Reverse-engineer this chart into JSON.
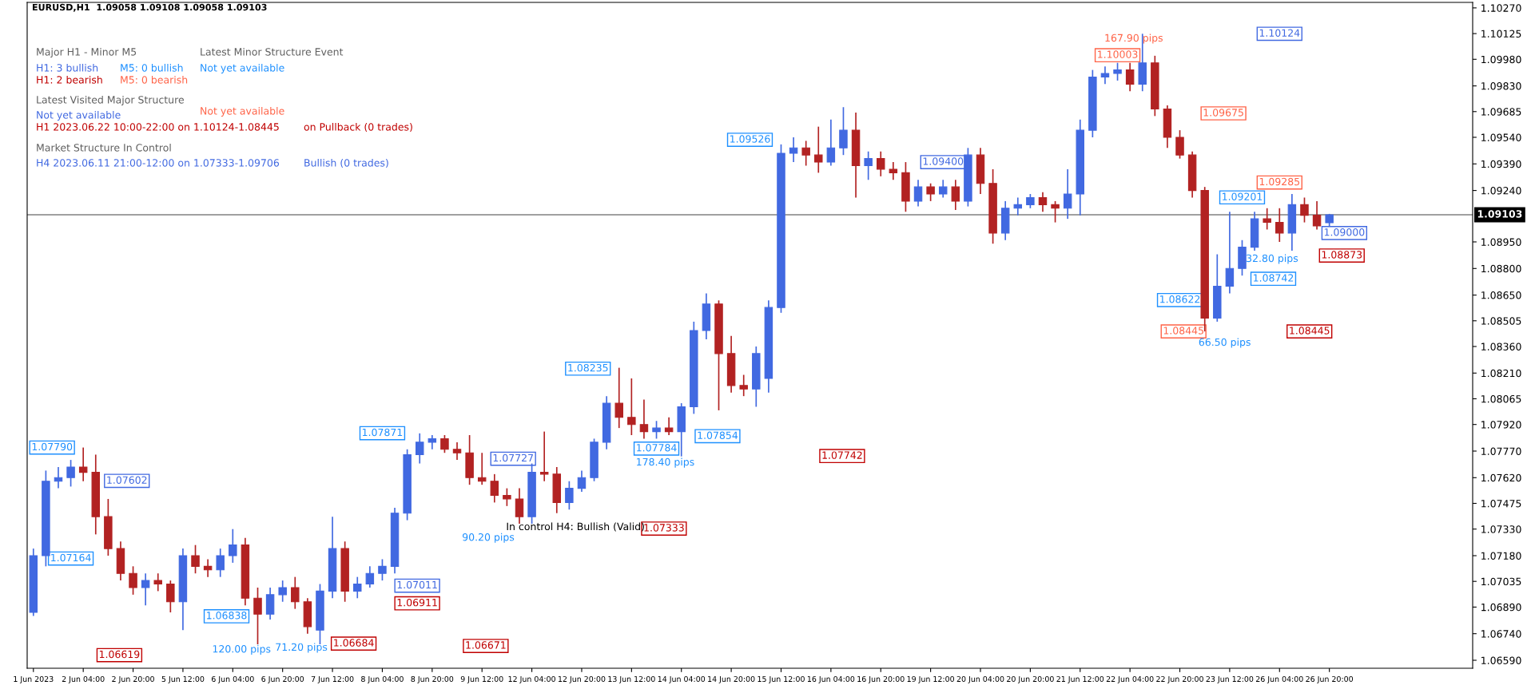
{
  "chart_data": {
    "type": "candlestick",
    "title": "EURUSD,H1  1.09058 1.09108 1.09058 1.09103",
    "categories": [
      "1 Jun 2023",
      null,
      null,
      null,
      "2 Jun 04:00",
      null,
      null,
      null,
      "2 Jun 20:00",
      null,
      null,
      null,
      "5 Jun 12:00",
      null,
      null,
      null,
      "6 Jun 04:00",
      null,
      null,
      null,
      "6 Jun 20:00",
      null,
      null,
      null,
      "7 Jun 12:00",
      null,
      null,
      null,
      "8 Jun 04:00",
      null,
      null,
      null,
      "8 Jun 20:00",
      null,
      null,
      null,
      "9 Jun 12:00",
      null,
      null,
      null,
      "12 Jun 04:00",
      null,
      null,
      null,
      "12 Jun 20:00",
      null,
      null,
      null,
      "13 Jun 12:00",
      null,
      null,
      null,
      "14 Jun 04:00",
      null,
      null,
      null,
      "14 Jun 20:00",
      null,
      null,
      null,
      "15 Jun 12:00",
      null,
      null,
      null,
      "16 Jun 04:00",
      null,
      null,
      null,
      "16 Jun 20:00",
      null,
      null,
      null,
      "19 Jun 12:00",
      null,
      null,
      null,
      "20 Jun 04:00",
      null,
      null,
      null,
      "20 Jun 20:00",
      null,
      null,
      null,
      "21 Jun 12:00",
      null,
      null,
      null,
      "22 Jun 04:00",
      null,
      null,
      null,
      "22 Jun 20:00",
      null,
      null,
      null,
      "23 Jun 12:00",
      null,
      null,
      null,
      "26 Jun 04:00",
      null,
      null,
      null,
      "26 Jun 20:00",
      null,
      null,
      null,
      null,
      null,
      null,
      null,
      null,
      null,
      null,
      null
    ],
    "ohlc": [
      [
        1.0686,
        1.0722,
        1.0684,
        1.0718
      ],
      [
        1.0718,
        1.0766,
        1.0712,
        1.076
      ],
      [
        1.076,
        1.0768,
        1.0756,
        1.0762
      ],
      [
        1.0762,
        1.0772,
        1.0757,
        1.0768
      ],
      [
        1.0768,
        1.0779,
        1.076,
        1.0765
      ],
      [
        1.0765,
        1.0775,
        1.073,
        1.074
      ],
      [
        1.074,
        1.075,
        1.0718,
        1.0722
      ],
      [
        1.0722,
        1.0726,
        1.0704,
        1.0708
      ],
      [
        1.0708,
        1.0712,
        1.0696,
        1.07
      ],
      [
        1.07,
        1.0708,
        1.069,
        1.0704
      ],
      [
        1.0704,
        1.0708,
        1.0698,
        1.0702
      ],
      [
        1.0702,
        1.0704,
        1.0686,
        1.0692
      ],
      [
        1.0692,
        1.0722,
        1.0676,
        1.0718
      ],
      [
        1.0718,
        1.0724,
        1.0708,
        1.0712
      ],
      [
        1.0712,
        1.0716,
        1.0706,
        1.071
      ],
      [
        1.071,
        1.0722,
        1.0706,
        1.0718
      ],
      [
        1.0718,
        1.0733,
        1.0714,
        1.0724
      ],
      [
        1.0724,
        1.0728,
        1.069,
        1.0694
      ],
      [
        1.0694,
        1.07,
        1.0668,
        1.0685
      ],
      [
        1.0685,
        1.07,
        1.0682,
        1.0696
      ],
      [
        1.0696,
        1.0704,
        1.0692,
        1.07
      ],
      [
        1.07,
        1.0706,
        1.0688,
        1.0692
      ],
      [
        1.0692,
        1.0694,
        1.0674,
        1.0678
      ],
      [
        1.0676,
        1.0702,
        1.0668,
        1.0698
      ],
      [
        1.0698,
        1.074,
        1.0694,
        1.0722
      ],
      [
        1.0722,
        1.0726,
        1.0692,
        1.0698
      ],
      [
        1.0698,
        1.0706,
        1.0694,
        1.0702
      ],
      [
        1.0702,
        1.0712,
        1.07,
        1.0708
      ],
      [
        1.0708,
        1.0716,
        1.0704,
        1.0712
      ],
      [
        1.0712,
        1.0745,
        1.0708,
        1.0742
      ],
      [
        1.0742,
        1.0778,
        1.0738,
        1.0775
      ],
      [
        1.0775,
        1.0787,
        1.077,
        1.0782
      ],
      [
        1.0782,
        1.0786,
        1.0778,
        1.0784
      ],
      [
        1.0784,
        1.0786,
        1.0776,
        1.0778
      ],
      [
        1.0778,
        1.0782,
        1.0772,
        1.0776
      ],
      [
        1.0776,
        1.0786,
        1.0758,
        1.0762
      ],
      [
        1.0762,
        1.0776,
        1.0758,
        1.076
      ],
      [
        1.076,
        1.0764,
        1.0748,
        1.0752
      ],
      [
        1.0752,
        1.0756,
        1.0746,
        1.075
      ],
      [
        1.075,
        1.0756,
        1.0736,
        1.074
      ],
      [
        1.074,
        1.077,
        1.0736,
        1.0765
      ],
      [
        1.0765,
        1.0788,
        1.076,
        1.0764
      ],
      [
        1.0764,
        1.0768,
        1.0742,
        1.0748
      ],
      [
        1.0748,
        1.076,
        1.0744,
        1.0756
      ],
      [
        1.0756,
        1.0766,
        1.0754,
        1.0762
      ],
      [
        1.0762,
        1.0784,
        1.076,
        1.0782
      ],
      [
        1.0782,
        1.0808,
        1.0778,
        1.0804
      ],
      [
        1.0804,
        1.0824,
        1.079,
        1.0796
      ],
      [
        1.0796,
        1.0818,
        1.0786,
        1.0792
      ],
      [
        1.0792,
        1.0806,
        1.0784,
        1.0788
      ],
      [
        1.0788,
        1.0794,
        1.0784,
        1.079
      ],
      [
        1.079,
        1.0796,
        1.0786,
        1.0788
      ],
      [
        1.0788,
        1.0804,
        1.0774,
        1.0802
      ],
      [
        1.0802,
        1.085,
        1.0798,
        1.0845
      ],
      [
        1.0845,
        1.0866,
        1.084,
        1.086
      ],
      [
        1.086,
        1.0862,
        1.08,
        1.0832
      ],
      [
        1.0832,
        1.0842,
        1.081,
        1.0814
      ],
      [
        1.0814,
        1.082,
        1.0808,
        1.0812
      ],
      [
        1.0812,
        1.0836,
        1.0802,
        1.0832
      ],
      [
        1.0818,
        1.0862,
        1.081,
        1.0858
      ],
      [
        1.0858,
        1.095,
        1.0855,
        1.0945
      ],
      [
        1.0945,
        1.0954,
        1.094,
        1.0948
      ],
      [
        1.0948,
        1.0952,
        1.0938,
        1.0944
      ],
      [
        1.0944,
        1.096,
        1.0934,
        1.094
      ],
      [
        1.094,
        1.0964,
        1.0938,
        1.0948
      ],
      [
        1.0948,
        1.0971,
        1.0944,
        1.0958
      ],
      [
        1.0958,
        1.0968,
        1.092,
        1.0938
      ],
      [
        1.0938,
        1.0946,
        1.093,
        1.0942
      ],
      [
        1.0942,
        1.0946,
        1.0932,
        1.0936
      ],
      [
        1.0936,
        1.094,
        1.093,
        1.0934
      ],
      [
        1.0934,
        1.094,
        1.0912,
        1.0918
      ],
      [
        1.0918,
        1.093,
        1.0915,
        1.0926
      ],
      [
        1.0926,
        1.0928,
        1.0918,
        1.0922
      ],
      [
        1.0922,
        1.093,
        1.092,
        1.0926
      ],
      [
        1.0926,
        1.093,
        1.0913,
        1.0918
      ],
      [
        1.0918,
        1.0948,
        1.0915,
        1.0944
      ],
      [
        1.0944,
        1.0948,
        1.0922,
        1.0928
      ],
      [
        1.0928,
        1.0936,
        1.0894,
        1.09
      ],
      [
        1.09,
        1.0918,
        1.0896,
        1.0914
      ],
      [
        1.0914,
        1.092,
        1.091,
        1.0916
      ],
      [
        1.0916,
        1.0922,
        1.0914,
        1.092
      ],
      [
        1.092,
        1.0923,
        1.0912,
        1.0916
      ],
      [
        1.0916,
        1.0918,
        1.0906,
        1.0914
      ],
      [
        1.0914,
        1.0936,
        1.0908,
        1.0922
      ],
      [
        1.0922,
        1.0964,
        1.091,
        1.0958
      ],
      [
        1.0958,
        1.0992,
        1.0954,
        1.0988
      ],
      [
        1.0988,
        1.0994,
        1.0984,
        1.099
      ],
      [
        1.099,
        1.0996,
        1.0986,
        1.0992
      ],
      [
        1.0992,
        1.0996,
        1.098,
        1.0984
      ],
      [
        1.0984,
        1.10124,
        1.098,
        1.0996
      ],
      [
        1.0996,
        1.1,
        1.0966,
        1.097
      ],
      [
        1.097,
        1.0972,
        1.0948,
        1.0954
      ],
      [
        1.0954,
        1.0958,
        1.0942,
        1.0944
      ],
      [
        1.0944,
        1.0946,
        1.092,
        1.0924
      ],
      [
        1.0924,
        1.0926,
        1.08445,
        1.0852
      ],
      [
        1.0852,
        1.0888,
        1.085,
        1.087
      ],
      [
        1.087,
        1.0912,
        1.0866,
        1.088
      ],
      [
        1.088,
        1.0896,
        1.0876,
        1.0892
      ],
      [
        1.0892,
        1.0912,
        1.089,
        1.0908
      ],
      [
        1.0908,
        1.0914,
        1.0902,
        1.0906
      ],
      [
        1.0906,
        1.0914,
        1.0895,
        1.09
      ],
      [
        1.09,
        1.0922,
        1.089,
        1.0916
      ],
      [
        1.0916,
        1.092,
        1.0906,
        1.091
      ],
      [
        1.091,
        1.0918,
        1.0902,
        1.0904
      ],
      [
        1.09058,
        1.09108,
        1.0904,
        1.09103
      ],
      null,
      null,
      null,
      null,
      null,
      null,
      null,
      null,
      null,
      null,
      null
    ],
    "ylim": [
      1.06545,
      1.10301
    ],
    "yticks": [
      {
        "value": 1.1027,
        "label": "1.10270"
      },
      {
        "value": 1.10125,
        "label": "1.10125"
      },
      {
        "value": 1.0998,
        "label": "1.09980"
      },
      {
        "value": 1.0983,
        "label": "1.09830"
      },
      {
        "value": 1.09685,
        "label": "1.09685"
      },
      {
        "value": 1.0954,
        "label": "1.09540"
      },
      {
        "value": 1.0939,
        "label": "1.09390"
      },
      {
        "value": 1.0924,
        "label": "1.09240"
      },
      {
        "value": 1.0895,
        "label": "1.08950"
      },
      {
        "value": 1.088,
        "label": "1.08800"
      },
      {
        "value": 1.0865,
        "label": "1.08650"
      },
      {
        "value": 1.08505,
        "label": "1.08505"
      },
      {
        "value": 1.0836,
        "label": "1.08360"
      },
      {
        "value": 1.0821,
        "label": "1.08210"
      },
      {
        "value": 1.08065,
        "label": "1.08065"
      },
      {
        "value": 1.0792,
        "label": "1.07920"
      },
      {
        "value": 1.0777,
        "label": "1.07770"
      },
      {
        "value": 1.0762,
        "label": "1.07620"
      },
      {
        "value": 1.07475,
        "label": "1.07475"
      },
      {
        "value": 1.0733,
        "label": "1.07330"
      },
      {
        "value": 1.0718,
        "label": "1.07180"
      },
      {
        "value": 1.07035,
        "label": "1.07035"
      },
      {
        "value": 1.0689,
        "label": "1.06890"
      },
      {
        "value": 1.0674,
        "label": "1.06740"
      },
      {
        "value": 1.0659,
        "label": "1.06590"
      }
    ],
    "ref_lines": [
      {
        "axis": "y",
        "value": 1.09103,
        "label": "1.09103",
        "color": "#808080"
      }
    ],
    "grid": false,
    "annotations": [
      "Major H1 - Minor M5",
      "H1: 3 bullish",
      "M5: 0 bullish",
      "H1: 2 bearish",
      "M5: 0 bearish",
      "Latest Minor Structure Event",
      "Not yet available",
      "Latest Visited Major Structure",
      "Not yet available",
      "Not yet available",
      "H1 2023.06.22 10:00-22:00 on 1.10124-1.08445",
      "on Pullback (0 trades)",
      "Market Structure In Control",
      "H4 2023.06.11 21:00-12:00 on 1.07333-1.09706",
      "Bullish (0 trades)",
      "1.07790",
      "1.07164",
      "1.06619",
      "1.07602",
      "1.06838",
      "1.06684",
      "1.07871",
      "1.07011",
      "1.06911",
      "1.07727",
      "1.06671",
      "1.08235",
      "1.07784",
      "1.07333",
      "1.07854",
      "1.07742",
      "1.09526",
      "1.09400",
      "1.10003",
      "1.09675",
      "1.10124",
      "1.09285",
      "1.09201",
      "1.08742",
      "1.08622",
      "1.08445",
      "1.08445",
      "1.08873",
      "1.09000",
      "120.00 pips",
      "71.20 pips",
      "90.20 pips",
      "178.40 pips",
      "167.90 pips",
      "66.50 pips",
      "32.80 pips",
      "In control H4: Bullish (Valid)"
    ]
  }
}
